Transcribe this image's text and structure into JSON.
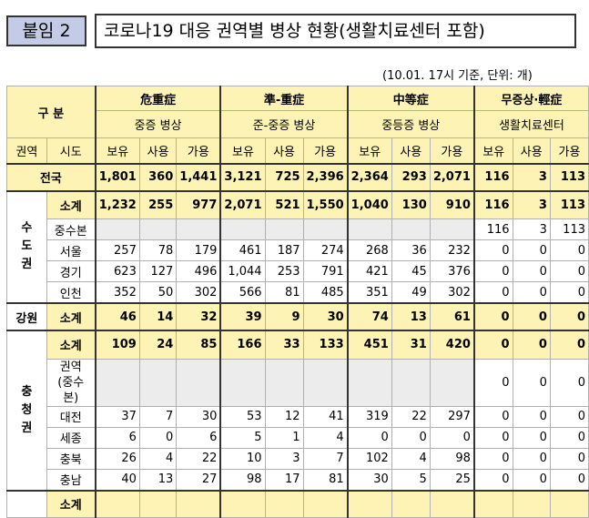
{
  "header": {
    "label": "붙임 2",
    "title": "코로나19 대응 권역별 병상 현황(생활치료센터 포함)"
  },
  "note": "(10.01. 17시 기준, 단위: 개)",
  "table": {
    "gubun": "구 분",
    "groups": [
      {
        "name": "危重症",
        "sub": "중증 병상"
      },
      {
        "name": "準-重症",
        "sub": "준-중증 병상"
      },
      {
        "name": "中等症",
        "sub": "중등증 병상"
      },
      {
        "name": "무증상·輕症",
        "sub": "생활치료센터"
      }
    ],
    "col_region": "권역",
    "col_sido": "시도",
    "col_bo": "보유",
    "col_sa": "사용",
    "col_ga": "가용",
    "rows": {
      "national": {
        "label": "전국",
        "v": [
          "1,801",
          "360",
          "1,441",
          "3,121",
          "725",
          "2,396",
          "2,364",
          "293",
          "2,071",
          "116",
          "3",
          "113"
        ]
      },
      "capital": {
        "region": "수도권",
        "subtotal": {
          "label": "소계",
          "v": [
            "1,232",
            "255",
            "977",
            "2,071",
            "521",
            "1,550",
            "1,040",
            "130",
            "910",
            "116",
            "3",
            "113"
          ]
        },
        "jungsu": {
          "label": "중수본",
          "v": [
            "116",
            "3",
            "113"
          ]
        },
        "seoul": {
          "label": "서울",
          "v": [
            "257",
            "78",
            "179",
            "461",
            "187",
            "274",
            "268",
            "36",
            "232",
            "0",
            "0",
            "0"
          ]
        },
        "gyeonggi": {
          "label": "경기",
          "v": [
            "623",
            "127",
            "496",
            "1,044",
            "253",
            "791",
            "421",
            "45",
            "376",
            "0",
            "0",
            "0"
          ]
        },
        "incheon": {
          "label": "인천",
          "v": [
            "352",
            "50",
            "302",
            "566",
            "81",
            "485",
            "351",
            "49",
            "302",
            "0",
            "0",
            "0"
          ]
        }
      },
      "gangwon": {
        "region": "강원",
        "label": "소계",
        "v": [
          "46",
          "14",
          "32",
          "39",
          "9",
          "30",
          "74",
          "13",
          "61",
          "0",
          "0",
          "0"
        ]
      },
      "chungcheong": {
        "region": "충청권",
        "subtotal": {
          "label": "소계",
          "v": [
            "109",
            "24",
            "85",
            "166",
            "33",
            "133",
            "451",
            "31",
            "420",
            "0",
            "0",
            "0"
          ]
        },
        "jungsu_line1": "권역",
        "jungsu_line2": "(중수본)",
        "jungsu_v": [
          "0",
          "0",
          "0"
        ],
        "daejeon": {
          "label": "대전",
          "v": [
            "37",
            "7",
            "30",
            "53",
            "12",
            "41",
            "319",
            "22",
            "297",
            "0",
            "0",
            "0"
          ]
        },
        "sejong": {
          "label": "세종",
          "v": [
            "6",
            "0",
            "6",
            "5",
            "1",
            "4",
            "0",
            "0",
            "0",
            "0",
            "0",
            "0"
          ]
        },
        "chungbuk": {
          "label": "충북",
          "v": [
            "26",
            "4",
            "22",
            "10",
            "3",
            "7",
            "102",
            "4",
            "98",
            "0",
            "0",
            "0"
          ]
        },
        "chungnam": {
          "label": "충남",
          "v": [
            "40",
            "13",
            "27",
            "98",
            "17",
            "81",
            "30",
            "5",
            "25",
            "0",
            "0",
            "0"
          ]
        }
      },
      "next": {
        "label": "소계"
      }
    }
  }
}
